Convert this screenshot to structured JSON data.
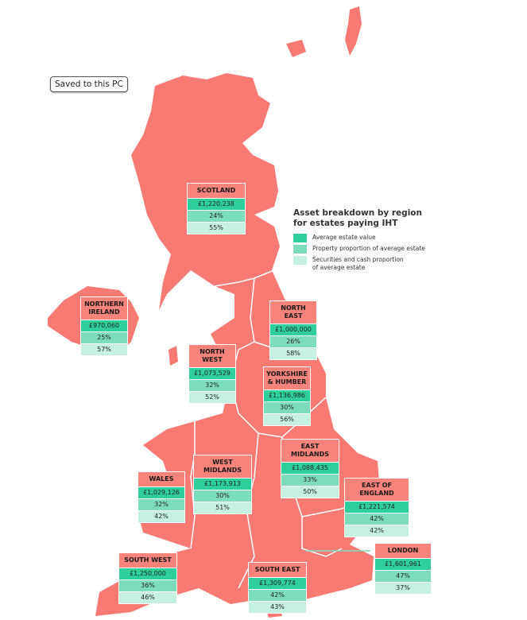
{
  "tooltip": "Saved to this PC",
  "colors": {
    "map": "#f87a72",
    "header": "#f7837a",
    "value": "#2ecf9c",
    "property": "#7ddcbc",
    "securities": "#c6f0e2"
  },
  "legend": {
    "title_line1": "Asset breakdown by region",
    "title_line2": "for estates paying IHT",
    "items": [
      {
        "label": "Average estate value",
        "label2": ""
      },
      {
        "label": "Property proportion of average estate",
        "label2": ""
      },
      {
        "label": "Securities and cash proportion",
        "label2": "of average estate"
      }
    ]
  },
  "regions": [
    {
      "name": "SCOTLAND",
      "name2": "",
      "value": "£1,220,238",
      "property": "24%",
      "securities": "55%"
    },
    {
      "name": "NORTHERN",
      "name2": "IRELAND",
      "value": "£970,060",
      "property": "25%",
      "securities": "57%"
    },
    {
      "name": "NORTH EAST",
      "name2": "",
      "value": "£1,000,000",
      "property": "26%",
      "securities": "58%"
    },
    {
      "name": "NORTH WEST",
      "name2": "",
      "value": "£1,073,529",
      "property": "32%",
      "securities": "52%"
    },
    {
      "name": "YORKSHIRE",
      "name2": "& HUMBER",
      "value": "£1,136,986",
      "property": "30%",
      "securities": "56%"
    },
    {
      "name": "EAST MIDLANDS",
      "name2": "",
      "value": "£1,088,435",
      "property": "33%",
      "securities": "50%"
    },
    {
      "name": "WEST MIDLANDS",
      "name2": "",
      "value": "£1,173,913",
      "property": "30%",
      "securities": "51%"
    },
    {
      "name": "WALES",
      "name2": "",
      "value": "£1,029,126",
      "property": "32%",
      "securities": "42%"
    },
    {
      "name": "EAST OF ENGLAND",
      "name2": "",
      "value": "£1,221,574",
      "property": "42%",
      "securities": "42%"
    },
    {
      "name": "LONDON",
      "name2": "",
      "value": "£1,601,961",
      "property": "47%",
      "securities": "37%"
    },
    {
      "name": "SOUTH WEST",
      "name2": "",
      "value": "£1,250,000",
      "property": "36%",
      "securities": "46%"
    },
    {
      "name": "SOUTH EAST",
      "name2": "",
      "value": "£1,309,774",
      "property": "42%",
      "securities": "43%"
    }
  ]
}
